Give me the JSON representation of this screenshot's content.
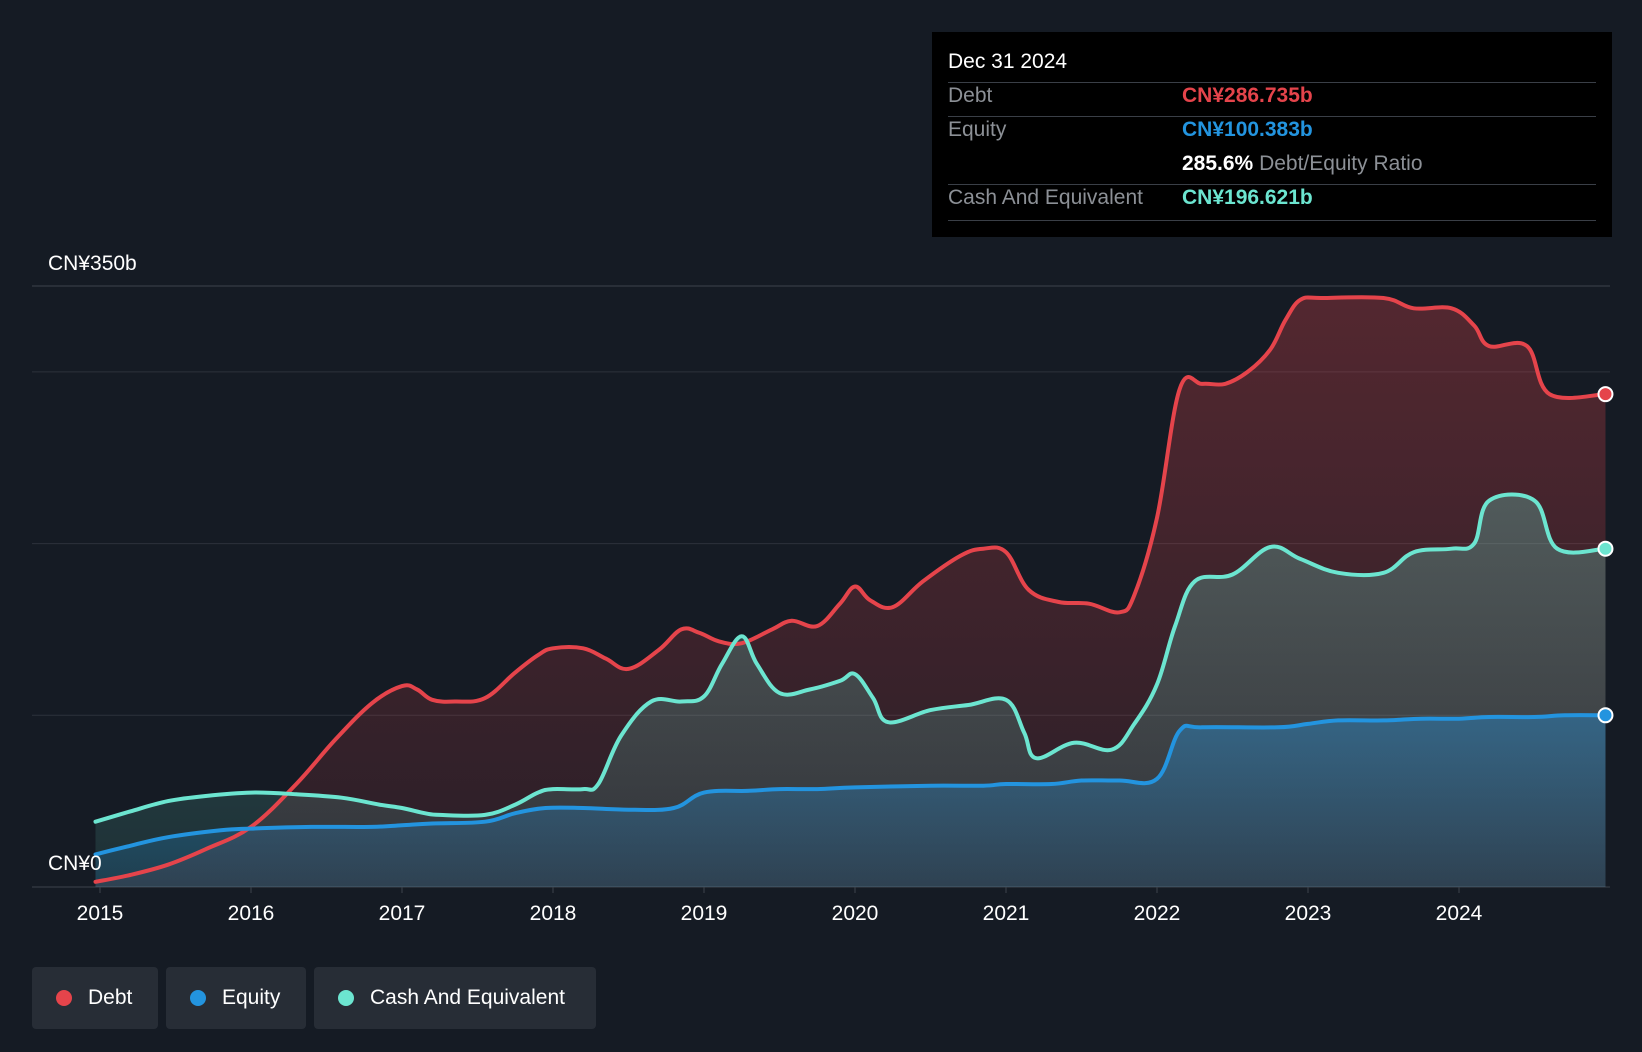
{
  "tooltip": {
    "date": "Dec 31 2024",
    "debt_label": "Debt",
    "debt_value": "CN¥286.735b",
    "equity_label": "Equity",
    "equity_value": "CN¥100.383b",
    "ratio_value": "285.6%",
    "ratio_label": "Debt/Equity Ratio",
    "cash_label": "Cash And Equivalent",
    "cash_value": "CN¥196.621b"
  },
  "legend": [
    {
      "label": "Debt",
      "color": "#e5444b"
    },
    {
      "label": "Equity",
      "color": "#2394df"
    },
    {
      "label": "Cash And Equivalent",
      "color": "#6ce5d0"
    }
  ],
  "chart_data": {
    "type": "area",
    "y_top_label": "CN¥350b",
    "y_bottom_label": "CN¥0",
    "ylim": [
      0,
      350
    ],
    "xlim": [
      2014.97,
      2024.97
    ],
    "x_ticks": [
      "2015",
      "2016",
      "2017",
      "2018",
      "2019",
      "2020",
      "2021",
      "2022",
      "2023",
      "2024"
    ],
    "grid": true,
    "series": [
      {
        "name": "Debt",
        "color": "#e5444b",
        "points": [
          [
            2014.97,
            3
          ],
          [
            2015.2,
            7
          ],
          [
            2015.45,
            13
          ],
          [
            2015.7,
            22
          ],
          [
            2016.0,
            35
          ],
          [
            2016.3,
            60
          ],
          [
            2016.55,
            85
          ],
          [
            2016.8,
            107
          ],
          [
            2017.0,
            117
          ],
          [
            2017.1,
            115
          ],
          [
            2017.2,
            109
          ],
          [
            2017.35,
            108
          ],
          [
            2017.55,
            110
          ],
          [
            2017.75,
            125
          ],
          [
            2017.9,
            135
          ],
          [
            2018.0,
            139
          ],
          [
            2018.2,
            139
          ],
          [
            2018.35,
            133
          ],
          [
            2018.5,
            127
          ],
          [
            2018.7,
            138
          ],
          [
            2018.85,
            150
          ],
          [
            2018.97,
            148
          ],
          [
            2019.1,
            143
          ],
          [
            2019.25,
            142
          ],
          [
            2019.45,
            150
          ],
          [
            2019.58,
            155
          ],
          [
            2019.75,
            152
          ],
          [
            2019.9,
            165
          ],
          [
            2020.0,
            175
          ],
          [
            2020.1,
            167
          ],
          [
            2020.25,
            163
          ],
          [
            2020.45,
            178
          ],
          [
            2020.7,
            193
          ],
          [
            2020.85,
            197
          ],
          [
            2021.0,
            195
          ],
          [
            2021.15,
            173
          ],
          [
            2021.35,
            166
          ],
          [
            2021.55,
            165
          ],
          [
            2021.75,
            160
          ],
          [
            2021.85,
            170
          ],
          [
            2022.0,
            215
          ],
          [
            2022.15,
            290
          ],
          [
            2022.3,
            293
          ],
          [
            2022.45,
            293
          ],
          [
            2022.6,
            300
          ],
          [
            2022.75,
            313
          ],
          [
            2022.85,
            330
          ],
          [
            2022.95,
            342
          ],
          [
            2023.1,
            343
          ],
          [
            2023.5,
            343
          ],
          [
            2023.7,
            337
          ],
          [
            2023.95,
            337
          ],
          [
            2024.1,
            327
          ],
          [
            2024.2,
            315
          ],
          [
            2024.45,
            315
          ],
          [
            2024.6,
            287
          ],
          [
            2024.97,
            287
          ]
        ]
      },
      {
        "name": "Cash And Equivalent",
        "color": "#6ce5d0",
        "points": [
          [
            2014.97,
            38
          ],
          [
            2015.2,
            44
          ],
          [
            2015.45,
            50
          ],
          [
            2015.7,
            53
          ],
          [
            2016.0,
            55
          ],
          [
            2016.3,
            54
          ],
          [
            2016.6,
            52
          ],
          [
            2016.85,
            48
          ],
          [
            2017.0,
            46
          ],
          [
            2017.15,
            43
          ],
          [
            2017.25,
            42
          ],
          [
            2017.55,
            42
          ],
          [
            2017.75,
            48
          ],
          [
            2017.9,
            55
          ],
          [
            2018.0,
            57
          ],
          [
            2018.2,
            57
          ],
          [
            2018.3,
            60
          ],
          [
            2018.45,
            88
          ],
          [
            2018.65,
            108
          ],
          [
            2018.85,
            108
          ],
          [
            2019.0,
            111
          ],
          [
            2019.12,
            130
          ],
          [
            2019.25,
            146
          ],
          [
            2019.35,
            130
          ],
          [
            2019.5,
            113
          ],
          [
            2019.7,
            115
          ],
          [
            2019.9,
            120
          ],
          [
            2020.0,
            124
          ],
          [
            2020.12,
            110
          ],
          [
            2020.22,
            96
          ],
          [
            2020.5,
            103
          ],
          [
            2020.75,
            106
          ],
          [
            2021.0,
            109
          ],
          [
            2021.12,
            90
          ],
          [
            2021.2,
            75
          ],
          [
            2021.45,
            84
          ],
          [
            2021.7,
            80
          ],
          [
            2021.85,
            95
          ],
          [
            2022.0,
            118
          ],
          [
            2022.12,
            152
          ],
          [
            2022.25,
            178
          ],
          [
            2022.5,
            182
          ],
          [
            2022.75,
            198
          ],
          [
            2022.95,
            191
          ],
          [
            2023.2,
            183
          ],
          [
            2023.5,
            183
          ],
          [
            2023.7,
            195
          ],
          [
            2023.95,
            197
          ],
          [
            2024.1,
            200
          ],
          [
            2024.2,
            225
          ],
          [
            2024.5,
            225
          ],
          [
            2024.65,
            197
          ],
          [
            2024.97,
            197
          ]
        ]
      },
      {
        "name": "Equity",
        "color": "#2394df",
        "points": [
          [
            2014.97,
            19
          ],
          [
            2015.2,
            24
          ],
          [
            2015.45,
            29
          ],
          [
            2015.8,
            33
          ],
          [
            2016.0,
            34
          ],
          [
            2016.4,
            35
          ],
          [
            2016.8,
            35
          ],
          [
            2017.0,
            36
          ],
          [
            2017.2,
            37
          ],
          [
            2017.55,
            38
          ],
          [
            2017.75,
            43
          ],
          [
            2017.95,
            46
          ],
          [
            2018.2,
            46
          ],
          [
            2018.5,
            45
          ],
          [
            2018.8,
            46
          ],
          [
            2019.0,
            55
          ],
          [
            2019.3,
            56
          ],
          [
            2019.5,
            57
          ],
          [
            2019.75,
            57
          ],
          [
            2020.0,
            58
          ],
          [
            2020.5,
            59
          ],
          [
            2020.85,
            59
          ],
          [
            2021.0,
            60
          ],
          [
            2021.3,
            60
          ],
          [
            2021.5,
            62
          ],
          [
            2021.75,
            62
          ],
          [
            2022.0,
            63
          ],
          [
            2022.15,
            91
          ],
          [
            2022.3,
            93
          ],
          [
            2022.8,
            93
          ],
          [
            2023.0,
            95
          ],
          [
            2023.2,
            97
          ],
          [
            2023.5,
            97
          ],
          [
            2023.75,
            98
          ],
          [
            2024.0,
            98
          ],
          [
            2024.2,
            99
          ],
          [
            2024.5,
            99
          ],
          [
            2024.7,
            100
          ],
          [
            2024.97,
            100
          ]
        ]
      }
    ]
  }
}
